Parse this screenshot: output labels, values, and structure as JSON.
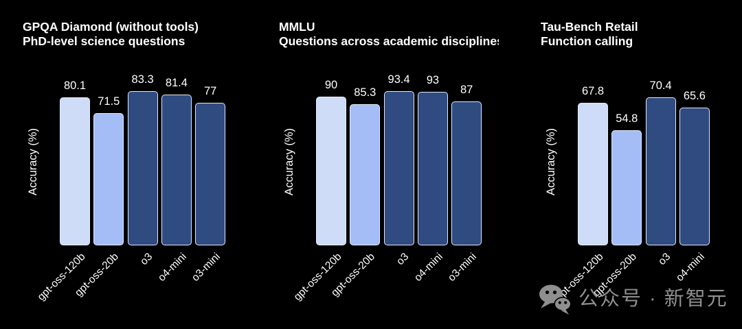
{
  "figure": {
    "background": "#000000",
    "text_color": "#ffffff",
    "bar_edge_color": "#e4ebf9"
  },
  "chart_data": [
    {
      "type": "bar",
      "title": "GPQA Diamond (without tools)",
      "subtitle": "PhD-level science questions",
      "ylabel": "Accuracy (%)",
      "categories": [
        "gpt-oss-120b",
        "gpt-oss-20b",
        "o3",
        "o4-mini",
        "o3-mini"
      ],
      "values": [
        80.1,
        71.5,
        83.3,
        81.4,
        77
      ],
      "bar_colors": [
        "#cfdcf8",
        "#a4bdf6",
        "#2f4b80",
        "#2f4b80",
        "#2f4b80"
      ],
      "ylim": [
        0,
        100
      ],
      "grid": false,
      "value_labels_shown": true,
      "legend": null
    },
    {
      "type": "bar",
      "title": "MMLU",
      "subtitle": "Questions across academic disciplines",
      "ylabel": "Accuracy (%)",
      "categories": [
        "gpt-oss-120b",
        "gpt-oss-20b",
        "o3",
        "o4-mini",
        "o3-mini"
      ],
      "values": [
        90,
        85.3,
        93.4,
        93,
        87
      ],
      "bar_colors": [
        "#cfdcf8",
        "#a4bdf6",
        "#2f4b80",
        "#2f4b80",
        "#2f4b80"
      ],
      "ylim": [
        0,
        112
      ],
      "grid": false,
      "value_labels_shown": true,
      "legend": null
    },
    {
      "type": "bar",
      "title": "Tau-Bench Retail",
      "subtitle": "Function calling",
      "ylabel": "Accuracy (%)",
      "categories": [
        "gpt-oss-120b",
        "gpt-oss-20b",
        "o3",
        "o4-mini"
      ],
      "values": [
        67.8,
        54.8,
        70.4,
        65.6
      ],
      "bar_colors": [
        "#cfdcf8",
        "#a4bdf6",
        "#2f4b80",
        "#2f4b80"
      ],
      "ylim": [
        0,
        88
      ],
      "grid": false,
      "value_labels_shown": true,
      "legend": null
    }
  ],
  "watermark": {
    "icon": "wechat-icon",
    "text": "公众号 · 新智元",
    "color": "#8f8f8f"
  }
}
